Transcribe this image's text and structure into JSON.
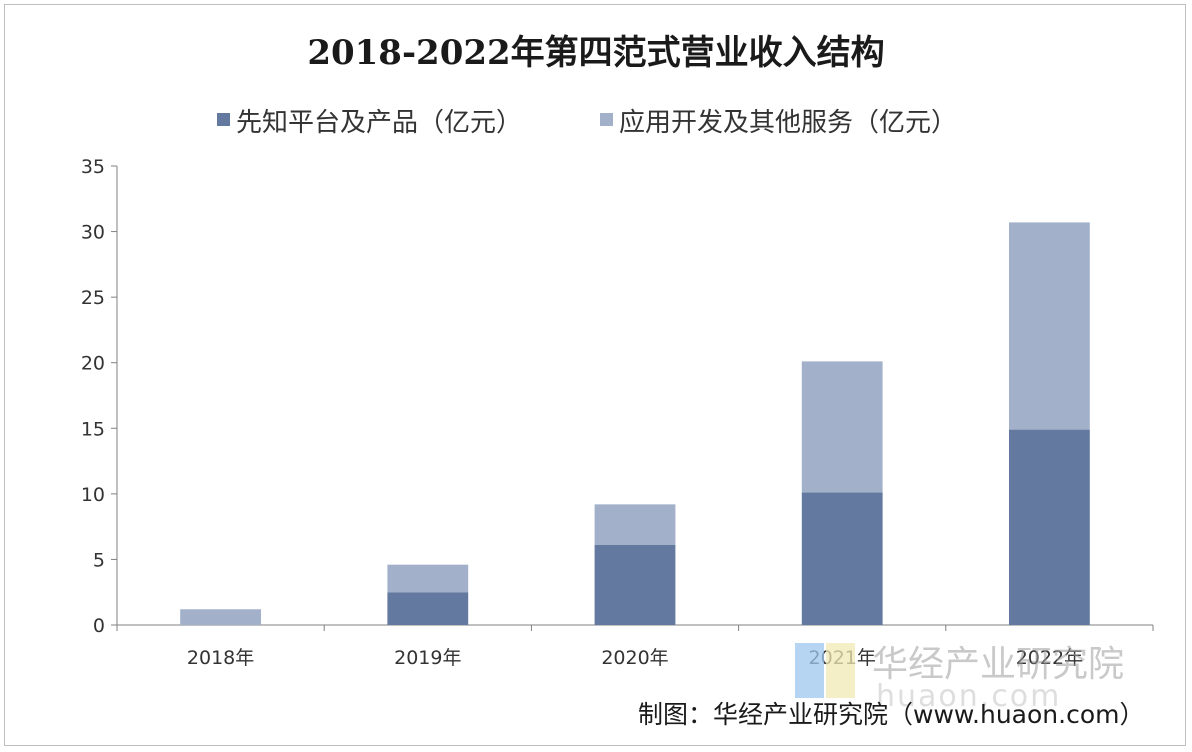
{
  "chart_data": {
    "type": "bar",
    "stacked": true,
    "title": "2018-2022年第四范式营业收入结构",
    "categories": [
      "2018年",
      "2019年",
      "2020年",
      "2021年",
      "2022年"
    ],
    "series": [
      {
        "name": "先知平台及产品（亿元）",
        "color": "#63799f",
        "values": [
          0,
          2.5,
          6.1,
          10.1,
          14.9
        ]
      },
      {
        "name": "应用开发及其他服务（亿元）",
        "color": "#a2b1c9",
        "values": [
          1.2,
          2.1,
          3.1,
          10.0,
          15.8
        ]
      }
    ],
    "ylim": [
      0,
      35
    ],
    "yticks": [
      "0",
      "5",
      "10",
      "15",
      "20",
      "25",
      "30",
      "35"
    ],
    "grid": false,
    "legend": "top"
  },
  "source": "制图：华经产业研究院（www.huaon.com）",
  "watermark": {
    "text": "华经产业研究院",
    "url": "huaon.com"
  }
}
